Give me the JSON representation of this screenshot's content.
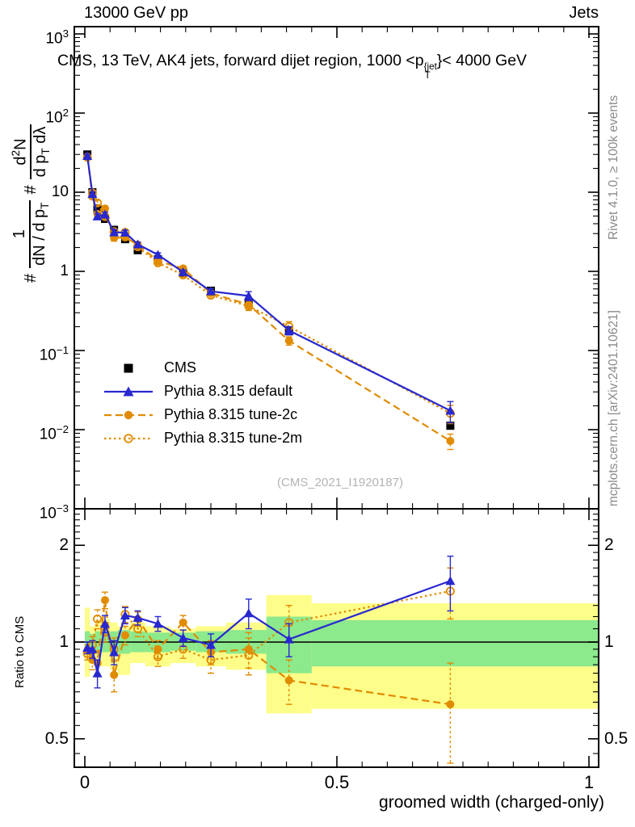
{
  "header": {
    "left": "13000 GeV pp",
    "right": "Jets"
  },
  "title": {
    "prefix": "CMS, 13 TeV, AK4 jets, forward dijet region, 1000 <p",
    "sup": "{jet",
    "sub": "T",
    "suffix": "}< 4000 GeV"
  },
  "ylabel": {
    "hash1": "#",
    "num1": "1",
    "den1_a": "dN / d p",
    "den1_sub": "T",
    "hash2": "#",
    "num2_a": "d",
    "num2_sup": "2",
    "num2_b": "N",
    "den2_a": "d p",
    "den2_sub": "T",
    "den2_b": " dλ"
  },
  "labels": {
    "ratio_axis": "Ratio to CMS",
    "x_axis": "groomed width (charged-only)",
    "watermark": "(CMS_2021_I1920187)"
  },
  "side_notes": {
    "top": "Rivet 4.1.0, ≥ 100k events",
    "bottom": "mcplots.cern.ch [arXiv:2401.10621]"
  },
  "colors": {
    "blue": "#2828cf",
    "orange": "#e08b00",
    "band_green": "#8ce98c",
    "band_yellow": "#fdfd8a",
    "gray_text": "#8a8a8a"
  },
  "legend": [
    {
      "label": "CMS",
      "marker": "square",
      "color": "#000000",
      "line": "none"
    },
    {
      "label": "Pythia 8.315 default",
      "marker": "triangle",
      "color": "#2828cf",
      "line": "solid"
    },
    {
      "label": "Pythia 8.315 tune-2c",
      "marker": "circle",
      "color": "#e08b00",
      "line": "dashed"
    },
    {
      "label": "Pythia 8.315 tune-2m",
      "marker": "circle-open",
      "color": "#e08b00",
      "line": "dotted"
    }
  ],
  "axes": {
    "x": {
      "range": [
        -0.021,
        1.019
      ],
      "major_ticks": [
        0,
        0.5,
        1
      ],
      "labels": [
        "0",
        "0.5",
        "1"
      ],
      "minor_step": 0.05
    },
    "y_main": {
      "scale": "log",
      "range": [
        0.001,
        1230
      ],
      "ticks": [
        {
          "v": 1000,
          "base": "10",
          "exp": "3"
        },
        {
          "v": 100,
          "base": "10",
          "exp": "2"
        },
        {
          "v": 10,
          "base": "10",
          "exp": ""
        },
        {
          "v": 1,
          "base": "1",
          "exp": ""
        },
        {
          "v": 0.1,
          "base": "10",
          "exp": "−1"
        },
        {
          "v": 0.01,
          "base": "10",
          "exp": "−2"
        },
        {
          "v": 0.001,
          "base": "10",
          "exp": "−3"
        }
      ]
    },
    "y_ratio": {
      "scale": "log",
      "range": [
        0.408,
        2.6
      ],
      "major_ticks": [
        {
          "v": 2,
          "label": "2"
        },
        {
          "v": 1,
          "label": "1"
        },
        {
          "v": 0.5,
          "label": "0.5"
        }
      ]
    }
  },
  "chart_data": {
    "type": "line",
    "title": "CMS, 13 TeV, AK4 jets, forward dijet region, 1000 <p_T^{jet}< 4000 GeV",
    "xlabel": "groomed width (charged-only)",
    "ylabel": "# 1/(dN / d p_T) # d²N/(d p_T dλ)",
    "ratio_ylabel": "Ratio to CMS",
    "x_range": [
      -0.021,
      1.019
    ],
    "y_scale": "log",
    "y_range": [
      0.001,
      1230
    ],
    "ratio_scale": "log",
    "ratio_range": [
      0.408,
      2.6
    ],
    "grid": false,
    "legend_position": "left-middle",
    "x": [
      0.005,
      0.015,
      0.025,
      0.04,
      0.058,
      0.08,
      0.105,
      0.145,
      0.195,
      0.25,
      0.325,
      0.405,
      0.725
    ],
    "series": [
      {
        "name": "CMS",
        "color": "#000000",
        "marker": "square",
        "line": "none",
        "values": [
          30,
          10.0,
          6.2,
          4.6,
          3.35,
          2.55,
          1.85,
          1.42,
          0.95,
          0.57,
          0.4,
          0.175,
          0.0112
        ]
      },
      {
        "name": "Pythia 8.315 default",
        "color": "#2828cf",
        "marker": "triangle",
        "line": "solid",
        "values": [
          28.8,
          9.5,
          4.96,
          5.24,
          3.12,
          3.09,
          2.2,
          1.62,
          0.98,
          0.56,
          0.49,
          0.179,
          0.0174
        ],
        "ratio": [
          0.96,
          0.95,
          0.8,
          1.14,
          0.93,
          1.21,
          1.19,
          1.14,
          1.03,
          0.98,
          1.23,
          1.02,
          1.55
        ],
        "ratio_err": [
          0.04,
          0.06,
          0.08,
          0.07,
          0.08,
          0.07,
          0.06,
          0.06,
          0.06,
          0.08,
          0.13,
          0.12,
          0.3
        ]
      },
      {
        "name": "Pythia 8.315 tune-2c",
        "color": "#e08b00",
        "marker": "circle",
        "line": "dashed",
        "values": [
          28.2,
          8.8,
          5.33,
          6.21,
          2.65,
          2.68,
          2.18,
          1.35,
          1.09,
          0.53,
          0.38,
          0.133,
          0.0072
        ],
        "ratio": [
          0.94,
          0.88,
          0.86,
          1.35,
          0.79,
          1.05,
          1.18,
          0.95,
          1.15,
          0.93,
          0.95,
          0.76,
          0.64
        ],
        "ratio_err": [
          0.04,
          0.06,
          0.08,
          0.08,
          0.09,
          0.07,
          0.06,
          0.06,
          0.06,
          0.08,
          0.12,
          0.12,
          0.22
        ]
      },
      {
        "name": "Pythia 8.315 tune-2m",
        "color": "#e08b00",
        "marker": "circle-open",
        "line": "dotted",
        "values": [
          27.6,
          9.8,
          7.32,
          4.92,
          3.18,
          3.11,
          2.04,
          1.28,
          0.9,
          0.5,
          0.364,
          0.201,
          0.0161
        ],
        "ratio": [
          0.92,
          0.98,
          1.18,
          1.07,
          0.95,
          1.22,
          1.1,
          0.9,
          0.95,
          0.88,
          0.91,
          1.15,
          1.44
        ],
        "ratio_err": [
          0.04,
          0.06,
          0.08,
          0.07,
          0.08,
          0.07,
          0.06,
          0.06,
          0.06,
          0.08,
          0.12,
          0.15,
          0.26
        ]
      }
    ],
    "cms_uncertainty_bands": {
      "green": [
        [
          0,
          0.01,
          0.93,
          1.08
        ],
        [
          0.01,
          0.02,
          0.95,
          1.06
        ],
        [
          0.02,
          0.03,
          0.93,
          1.08
        ],
        [
          0.03,
          0.05,
          0.93,
          1.08
        ],
        [
          0.05,
          0.065,
          0.92,
          1.08
        ],
        [
          0.065,
          0.09,
          0.92,
          1.09
        ],
        [
          0.09,
          0.12,
          0.93,
          1.08
        ],
        [
          0.12,
          0.17,
          0.93,
          1.07
        ],
        [
          0.17,
          0.22,
          0.94,
          1.07
        ],
        [
          0.22,
          0.28,
          0.93,
          1.08
        ],
        [
          0.28,
          0.36,
          0.92,
          1.09
        ],
        [
          0.36,
          0.45,
          0.8,
          1.2
        ],
        [
          0.45,
          1.019,
          0.84,
          1.17
        ]
      ],
      "yellow": [
        [
          0,
          0.01,
          0.78,
          1.28
        ],
        [
          0.01,
          0.02,
          0.88,
          1.12
        ],
        [
          0.02,
          0.03,
          0.85,
          1.15
        ],
        [
          0.03,
          0.05,
          0.84,
          1.18
        ],
        [
          0.05,
          0.065,
          0.82,
          1.15
        ],
        [
          0.065,
          0.09,
          0.79,
          1.12
        ],
        [
          0.09,
          0.12,
          0.86,
          1.15
        ],
        [
          0.12,
          0.17,
          0.84,
          1.12
        ],
        [
          0.17,
          0.22,
          0.86,
          1.1
        ],
        [
          0.22,
          0.28,
          0.84,
          1.12
        ],
        [
          0.28,
          0.36,
          0.82,
          1.15
        ],
        [
          0.36,
          0.45,
          0.6,
          1.4
        ],
        [
          0.45,
          1.019,
          0.62,
          1.32
        ]
      ]
    }
  }
}
